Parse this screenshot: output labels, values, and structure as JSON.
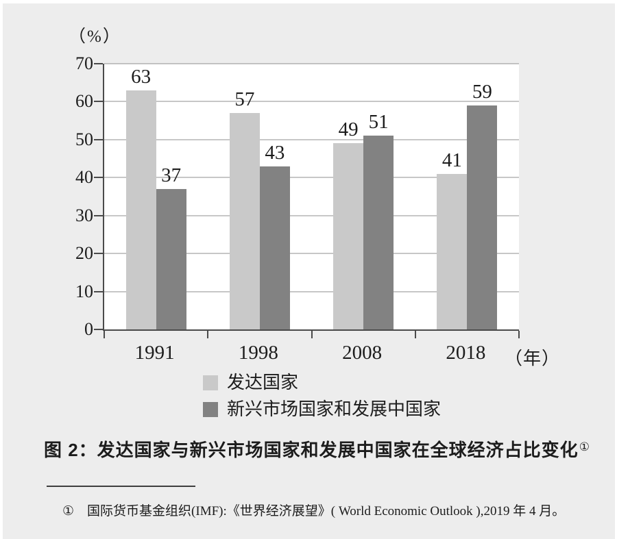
{
  "chart_data": {
    "type": "bar",
    "title": "图 2：发达国家与新兴市场国家和发展中国家在全球经济占比变化",
    "ylabel": "（%）",
    "xlabel": "（年）",
    "categories": [
      "1991",
      "1998",
      "2008",
      "2018"
    ],
    "series": [
      {
        "name": "发达国家",
        "color": "#c9c9c9",
        "values": [
          63,
          57,
          49,
          41
        ]
      },
      {
        "name": "新兴市场国家和发展中国家",
        "color": "#828282",
        "values": [
          37,
          43,
          51,
          59
        ]
      }
    ],
    "ylim": [
      0,
      70
    ],
    "ytick_step": 10,
    "grid": true,
    "legend_position": "below-chart"
  },
  "caption": {
    "text": "图 2：发达国家与新兴市场国家和发展中国家在全球经济占比变化",
    "footnote_marker": "①"
  },
  "footnote": {
    "marker": "①",
    "text": "国际货币基金组织(IMF):《世界经济展望》( World Economic Outlook ),2019 年 4 月。"
  },
  "colors": {
    "panel_bg": "#ededed",
    "plot_bg": "#ffffff",
    "gridline": "#8f8f8f",
    "axis": "#4a4a4a",
    "text": "#1c1c1c"
  }
}
